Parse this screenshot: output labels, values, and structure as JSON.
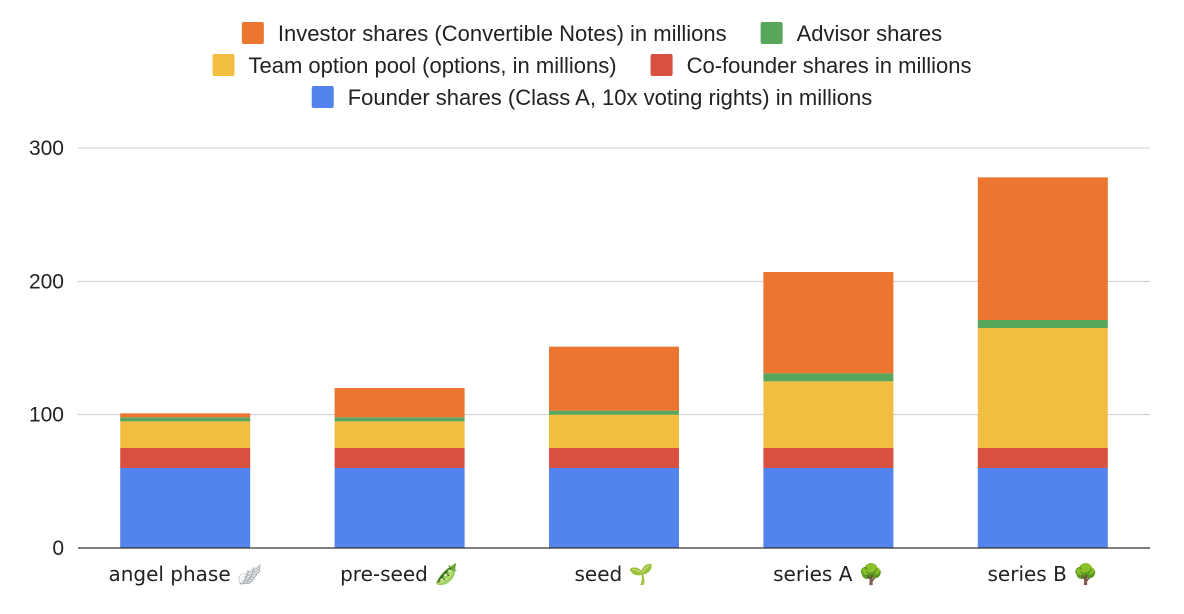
{
  "chart_data": {
    "type": "bar",
    "stacked": true,
    "categories": [
      "angel phase 🪽",
      "pre-seed 🫛",
      "seed 🌱",
      "series A 🌳",
      "series B 🌳"
    ],
    "series": [
      {
        "name": "Founder shares (Class A, 10x voting rights) in millions",
        "color": "#5383ec",
        "values": [
          60,
          60,
          60,
          60,
          60
        ]
      },
      {
        "name": "Co-founder shares in millions",
        "color": "#d85140",
        "values": [
          15,
          15,
          15,
          15,
          15
        ]
      },
      {
        "name": "Team option pool (options, in millions)",
        "color": "#f1be42",
        "values": [
          20,
          20,
          25,
          50,
          90
        ]
      },
      {
        "name": "Advisor shares",
        "color": "#58a65c",
        "values": [
          3,
          3,
          3,
          6,
          6
        ]
      },
      {
        "name": "Investor shares (Convertible Notes) in millions",
        "color": "#ec7630",
        "values": [
          3,
          22,
          48,
          76,
          107
        ]
      }
    ],
    "legend_order": [
      4,
      3,
      2,
      1,
      0
    ],
    "yticks": [
      0,
      100,
      200,
      300
    ],
    "ylim": [
      0,
      300
    ],
    "grid": true,
    "legend_position": "top"
  }
}
